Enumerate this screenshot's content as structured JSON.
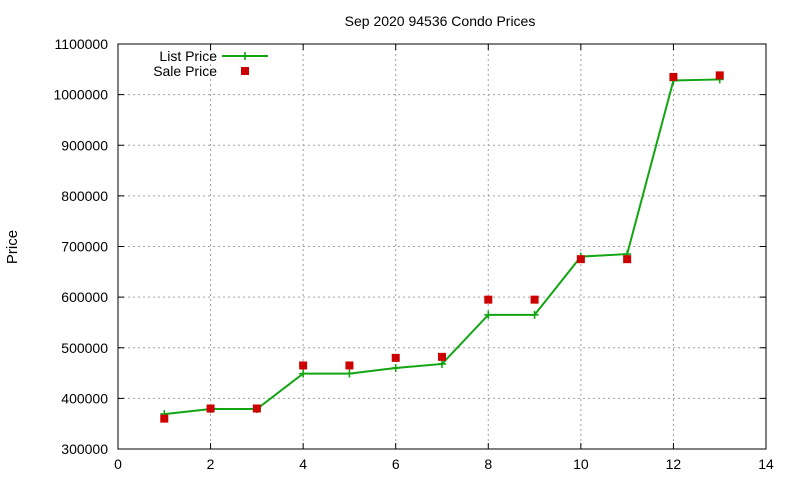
{
  "chart_data": {
    "type": "line",
    "title": "Sep 2020 94536 Condo Prices",
    "xlabel": "",
    "ylabel": "Price",
    "xlim": [
      0,
      14
    ],
    "ylim": [
      300000,
      1100000
    ],
    "x_ticks": [
      0,
      2,
      4,
      6,
      8,
      10,
      12,
      14
    ],
    "y_ticks": [
      300000,
      400000,
      500000,
      600000,
      700000,
      800000,
      900000,
      1000000,
      1100000
    ],
    "grid": true,
    "legend_position": "top-left",
    "series": [
      {
        "name": "List Price",
        "style": "linespoints",
        "marker": "plus",
        "color": "#11a611",
        "x": [
          1,
          2,
          3,
          4,
          5,
          6,
          7,
          8,
          9,
          10,
          11,
          12,
          13
        ],
        "y": [
          369000,
          379000,
          379000,
          449000,
          449000,
          460000,
          468000,
          565000,
          565000,
          680000,
          685000,
          1028000,
          1030000
        ]
      },
      {
        "name": "Sale Price",
        "style": "points",
        "marker": "square",
        "color": "#cc0000",
        "x": [
          1,
          2,
          3,
          4,
          5,
          6,
          7,
          8,
          9,
          10,
          11,
          12,
          13
        ],
        "y": [
          360000,
          380000,
          380000,
          465000,
          465000,
          480000,
          482000,
          595000,
          595000,
          675000,
          675000,
          1035000,
          1038000
        ]
      }
    ]
  }
}
